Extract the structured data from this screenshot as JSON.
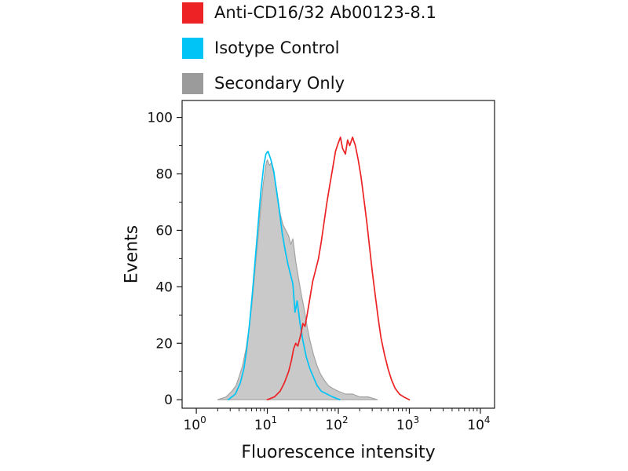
{
  "legend": {
    "items": [
      {
        "label": "Anti-CD16/32 Ab00123-8.1",
        "color": "#ed2224"
      },
      {
        "label": "Isotype Control",
        "color": "#00c4f5"
      },
      {
        "label": "Secondary Only",
        "color": "#9b9b9b"
      }
    ]
  },
  "chart_data": {
    "type": "line",
    "title": "",
    "xlabel": "Fluorescence intensity",
    "ylabel": "Events",
    "x_scale": "log10",
    "xlim_exponents": [
      0,
      4
    ],
    "x_ticks_exponents": [
      0,
      1,
      2,
      3,
      4
    ],
    "ylim": [
      0,
      100
    ],
    "y_ticks": [
      0,
      20,
      40,
      60,
      80,
      100
    ],
    "y_minor_step": 10,
    "grid": false,
    "legend_position": "top-left-outside",
    "series": [
      {
        "name": "Secondary Only",
        "style": "filled",
        "stroke": "#a3a3a3",
        "fill": "#c9c9c9",
        "points_log10x_y": [
          [
            0.3,
            0
          ],
          [
            0.42,
            1
          ],
          [
            0.5,
            3
          ],
          [
            0.56,
            5
          ],
          [
            0.6,
            8
          ],
          [
            0.65,
            12
          ],
          [
            0.7,
            18
          ],
          [
            0.74,
            25
          ],
          [
            0.78,
            33
          ],
          [
            0.82,
            44
          ],
          [
            0.86,
            55
          ],
          [
            0.9,
            66
          ],
          [
            0.94,
            76
          ],
          [
            0.98,
            83
          ],
          [
            1.0,
            85
          ],
          [
            1.03,
            83
          ],
          [
            1.06,
            84
          ],
          [
            1.1,
            79
          ],
          [
            1.14,
            73
          ],
          [
            1.18,
            66
          ],
          [
            1.22,
            62
          ],
          [
            1.26,
            60
          ],
          [
            1.3,
            58
          ],
          [
            1.33,
            55
          ],
          [
            1.36,
            57
          ],
          [
            1.4,
            49
          ],
          [
            1.44,
            43
          ],
          [
            1.48,
            37
          ],
          [
            1.52,
            32
          ],
          [
            1.56,
            26
          ],
          [
            1.6,
            21
          ],
          [
            1.65,
            16
          ],
          [
            1.7,
            12
          ],
          [
            1.75,
            9
          ],
          [
            1.8,
            7
          ],
          [
            1.86,
            5
          ],
          [
            1.92,
            4
          ],
          [
            2.0,
            3
          ],
          [
            2.1,
            2
          ],
          [
            2.2,
            2
          ],
          [
            2.3,
            1
          ],
          [
            2.42,
            1
          ],
          [
            2.55,
            0
          ]
        ]
      },
      {
        "name": "Isotype Control",
        "style": "line",
        "stroke": "#00c4f5",
        "points_log10x_y": [
          [
            0.45,
            0
          ],
          [
            0.55,
            2
          ],
          [
            0.62,
            6
          ],
          [
            0.67,
            11
          ],
          [
            0.71,
            18
          ],
          [
            0.75,
            27
          ],
          [
            0.79,
            38
          ],
          [
            0.83,
            50
          ],
          [
            0.87,
            62
          ],
          [
            0.91,
            74
          ],
          [
            0.95,
            83
          ],
          [
            0.98,
            87
          ],
          [
            1.01,
            88
          ],
          [
            1.05,
            85
          ],
          [
            1.09,
            81
          ],
          [
            1.13,
            74
          ],
          [
            1.17,
            67
          ],
          [
            1.21,
            59
          ],
          [
            1.25,
            53
          ],
          [
            1.29,
            48
          ],
          [
            1.33,
            44
          ],
          [
            1.36,
            41
          ],
          [
            1.39,
            31
          ],
          [
            1.42,
            35
          ],
          [
            1.46,
            27
          ],
          [
            1.5,
            21
          ],
          [
            1.55,
            15
          ],
          [
            1.6,
            11
          ],
          [
            1.65,
            8
          ],
          [
            1.7,
            5
          ],
          [
            1.76,
            3
          ],
          [
            1.84,
            2
          ],
          [
            1.92,
            1
          ],
          [
            2.02,
            0
          ]
        ]
      },
      {
        "name": "Anti-CD16/32 Ab00123-8.1",
        "style": "line",
        "stroke": "#ed2224",
        "points_log10x_y": [
          [
            1.0,
            0
          ],
          [
            1.1,
            1
          ],
          [
            1.18,
            3
          ],
          [
            1.24,
            6
          ],
          [
            1.3,
            10
          ],
          [
            1.34,
            14
          ],
          [
            1.37,
            18
          ],
          [
            1.4,
            20
          ],
          [
            1.43,
            19
          ],
          [
            1.47,
            23
          ],
          [
            1.5,
            27
          ],
          [
            1.53,
            26
          ],
          [
            1.56,
            30
          ],
          [
            1.6,
            36
          ],
          [
            1.64,
            42
          ],
          [
            1.68,
            46
          ],
          [
            1.72,
            50
          ],
          [
            1.76,
            56
          ],
          [
            1.8,
            63
          ],
          [
            1.84,
            70
          ],
          [
            1.88,
            76
          ],
          [
            1.92,
            82
          ],
          [
            1.96,
            88
          ],
          [
            2.0,
            91
          ],
          [
            2.03,
            93
          ],
          [
            2.06,
            89
          ],
          [
            2.1,
            87
          ],
          [
            2.13,
            92
          ],
          [
            2.16,
            90
          ],
          [
            2.2,
            93
          ],
          [
            2.24,
            90
          ],
          [
            2.28,
            85
          ],
          [
            2.32,
            79
          ],
          [
            2.36,
            71
          ],
          [
            2.4,
            63
          ],
          [
            2.44,
            54
          ],
          [
            2.48,
            45
          ],
          [
            2.52,
            37
          ],
          [
            2.56,
            29
          ],
          [
            2.6,
            22
          ],
          [
            2.65,
            16
          ],
          [
            2.7,
            11
          ],
          [
            2.75,
            7
          ],
          [
            2.8,
            4
          ],
          [
            2.86,
            2
          ],
          [
            2.92,
            1
          ],
          [
            3.0,
            0
          ]
        ]
      }
    ]
  }
}
